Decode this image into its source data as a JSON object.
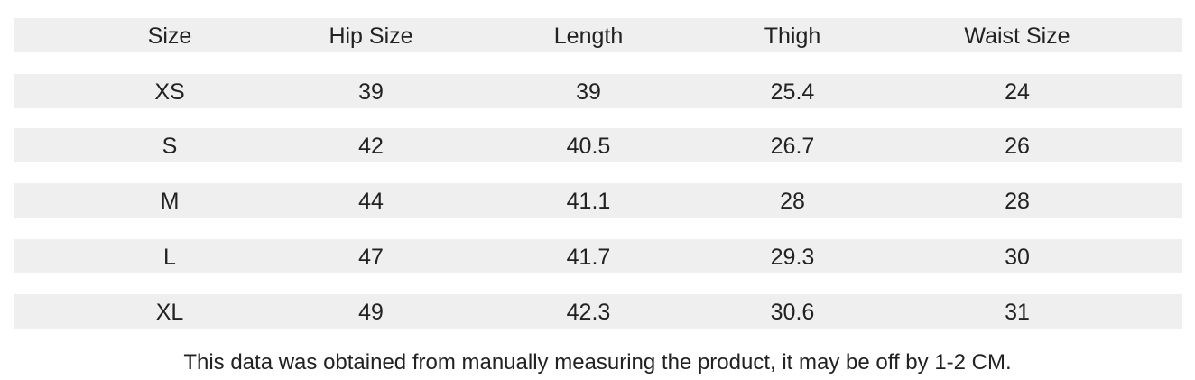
{
  "table": {
    "header": [
      "Size",
      "Hip Size",
      "Length",
      "Thigh",
      "Waist Size"
    ],
    "rows": [
      [
        "XS",
        39,
        39,
        25.4,
        24
      ],
      [
        "S",
        42,
        40.5,
        26.7,
        26
      ],
      [
        "M",
        44,
        41.1,
        28,
        28
      ],
      [
        "L",
        47,
        41.7,
        29.3,
        30
      ],
      [
        "XL",
        49,
        42.3,
        30.6,
        31
      ]
    ]
  },
  "footnote": "This data was obtained from manually measuring the product, it may be off by 1-2 CM."
}
